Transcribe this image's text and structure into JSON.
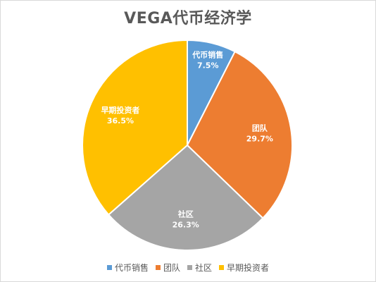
{
  "chart_data": {
    "type": "pie",
    "title": "VEGA代币经济学",
    "categories": [
      "代币销售",
      "团队",
      "社区",
      "早期投资者"
    ],
    "values": [
      7.5,
      29.7,
      26.3,
      36.5
    ],
    "value_labels": [
      "7.5%",
      "29.7%",
      "26.3%",
      "36.5%"
    ],
    "colors": [
      "#5b9bd5",
      "#ed7d31",
      "#a5a5a5",
      "#ffc000"
    ],
    "legend_position": "bottom",
    "start_angle": "12 o'clock",
    "direction": "clockwise"
  }
}
